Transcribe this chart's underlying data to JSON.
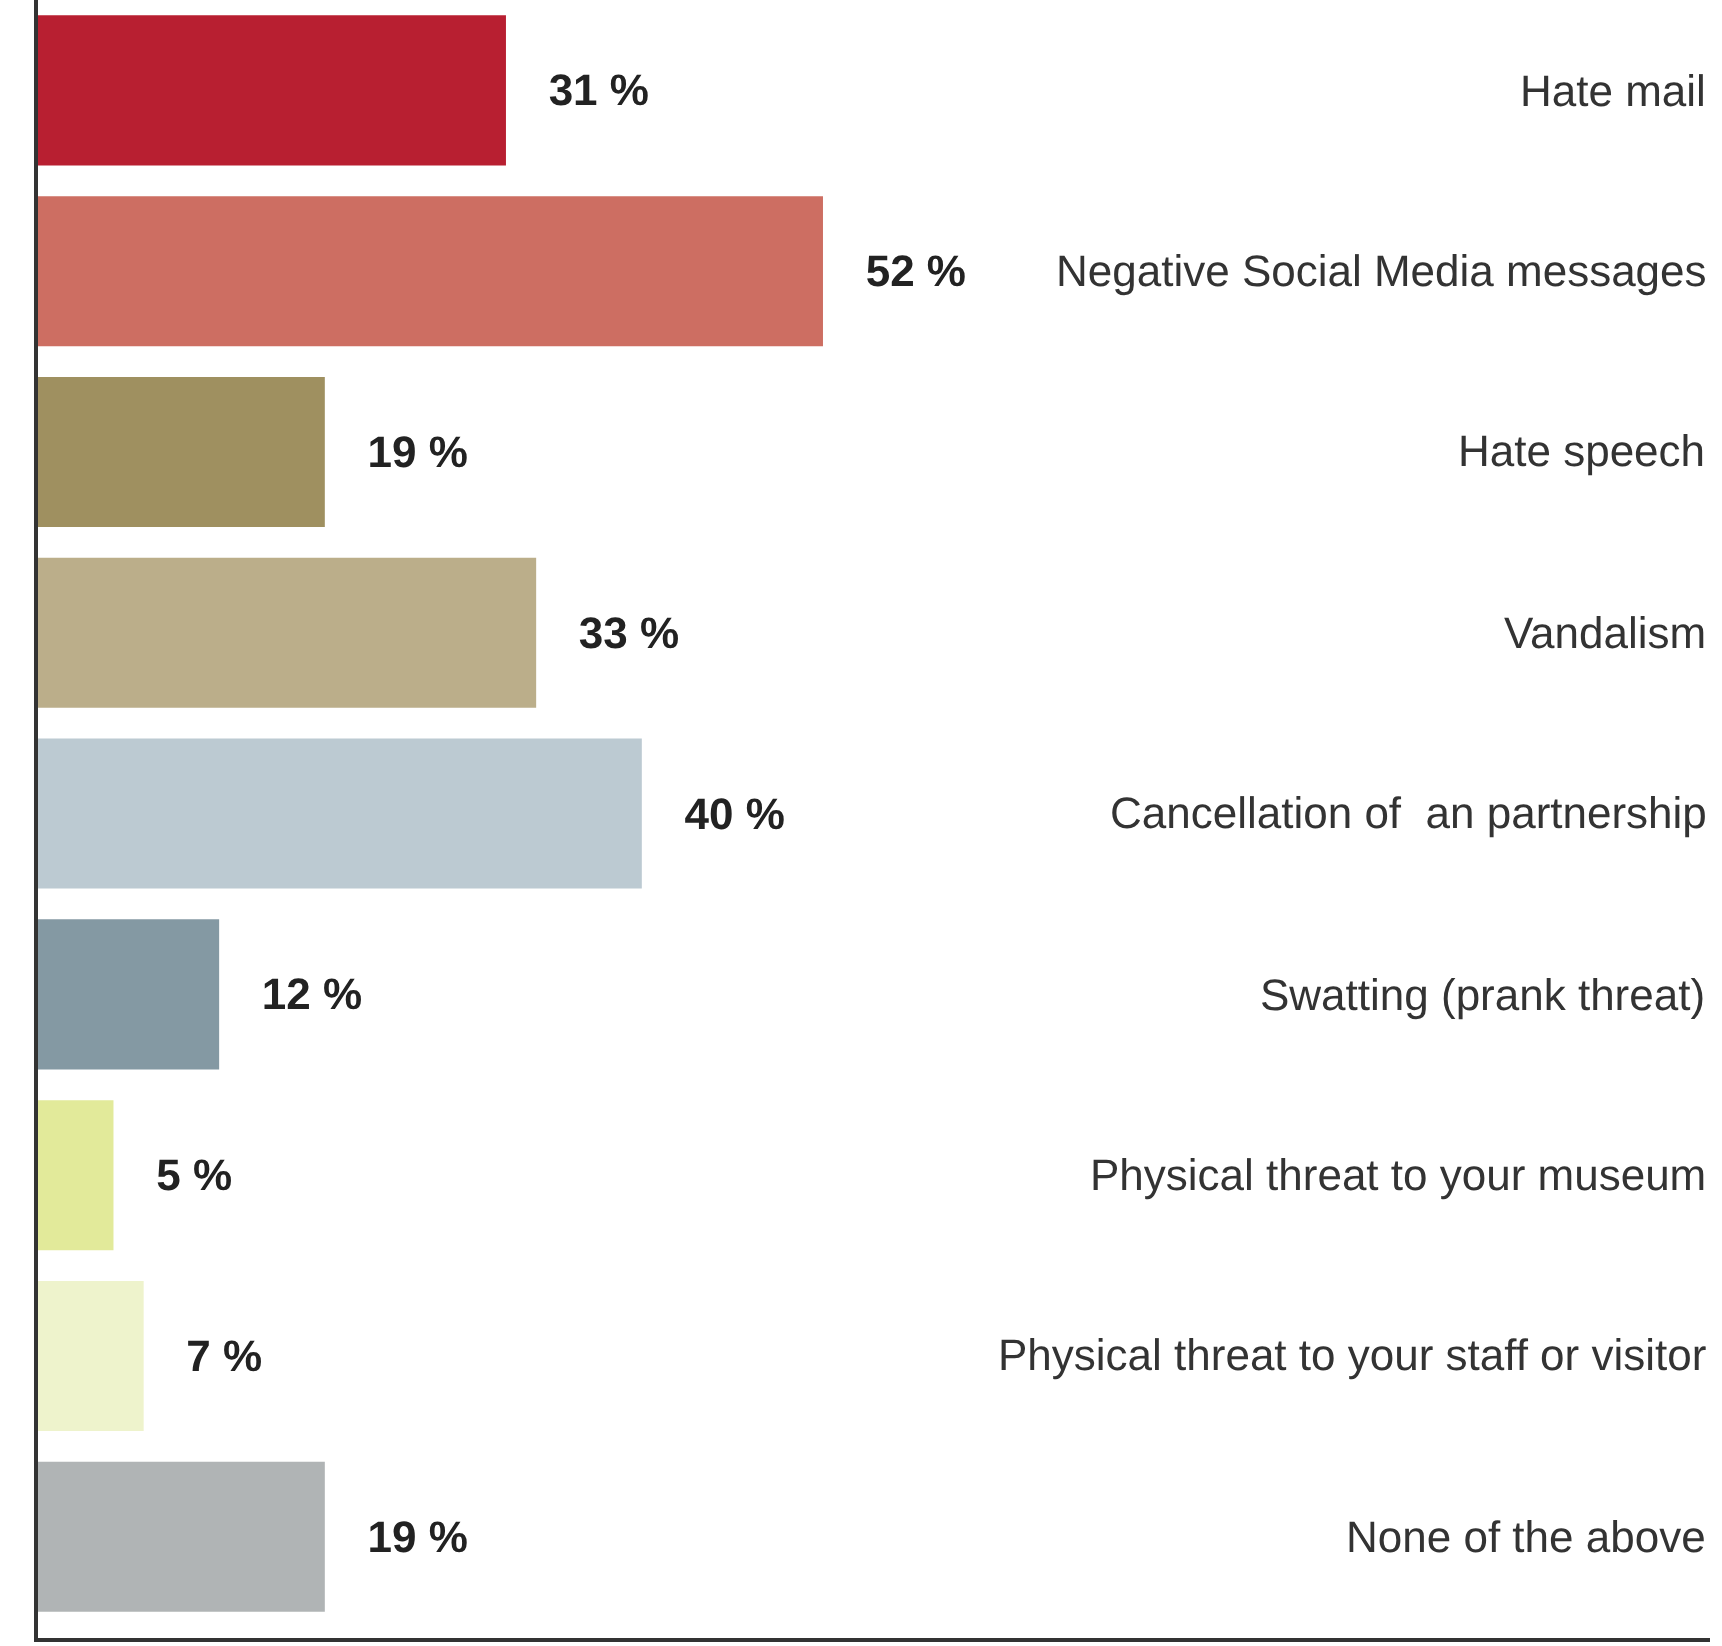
{
  "chart_data": {
    "type": "bar",
    "orientation": "horizontal",
    "categories": [
      "Hate mail",
      "Negative Social Media messages",
      "Hate speech",
      "Vandalism",
      "Cancellation of  an partnership",
      "Swatting (prank threat)",
      "Physical threat to your museum",
      "Physical threat to your staff or visitor",
      "None of the above"
    ],
    "values": [
      31,
      52,
      19,
      33,
      40,
      12,
      5,
      7,
      19
    ],
    "value_labels": [
      "31 %",
      "52 %",
      "19 %",
      "33 %",
      "40 %",
      "12 %",
      "5 %",
      "7 %",
      "19 %"
    ],
    "colors": [
      "#b81f31",
      "#cd6e62",
      "#9f9060",
      "#bbae8a",
      "#bccad2",
      "#8499a3",
      "#e2ea9a",
      "#eef3cc",
      "#b0b4b5"
    ],
    "legend": false
  }
}
